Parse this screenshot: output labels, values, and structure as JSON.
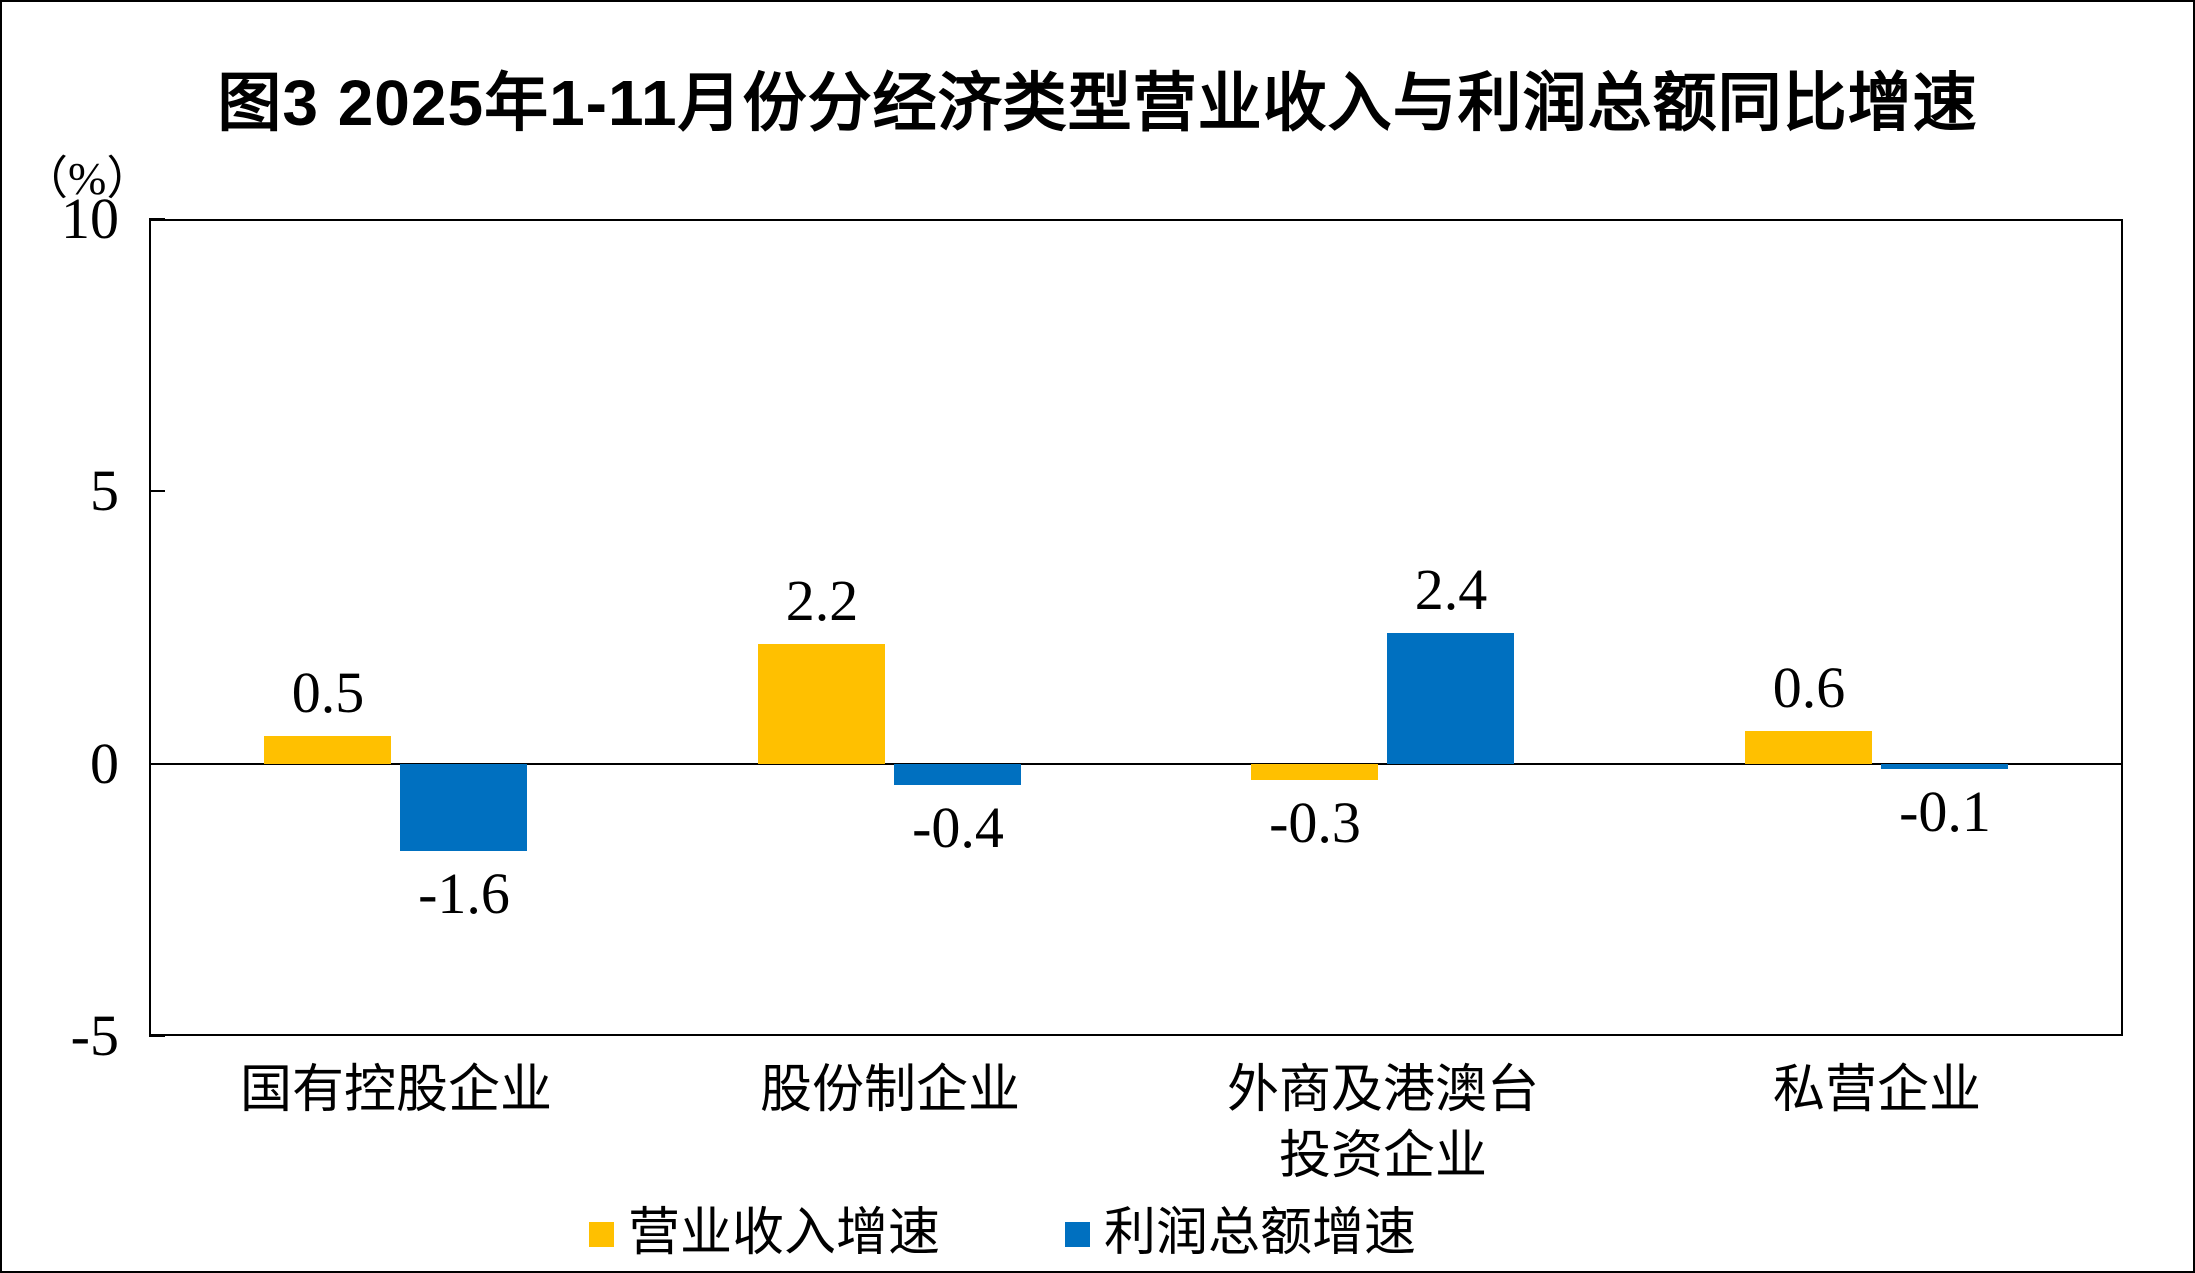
{
  "figure": {
    "title": "图3 2025年1-11月份分经济类型营业收入与利润总额同比增速",
    "y_axis_unit": "（%）"
  },
  "chart_data": {
    "type": "bar",
    "title": "图3 2025年1-11月份分经济类型营业收入与利润总额同比增速",
    "xlabel": "",
    "ylabel": "（%）",
    "ylim": [
      -5,
      10
    ],
    "yticks": [
      10,
      5,
      0,
      -5
    ],
    "grid": "zero-baseline-only",
    "legend_position": "bottom",
    "data_labels": true,
    "categories": [
      "国有控股企业",
      "股份制企业",
      "外商及港澳台\n投资企业",
      "私营企业"
    ],
    "series": [
      {
        "name": "营业收入增速",
        "color": "#FFC000",
        "values": [
          0.5,
          2.2,
          -0.3,
          0.6
        ]
      },
      {
        "name": "利润总额增速",
        "color": "#0070C0",
        "values": [
          -1.6,
          -0.4,
          2.4,
          -0.1
        ]
      }
    ]
  }
}
